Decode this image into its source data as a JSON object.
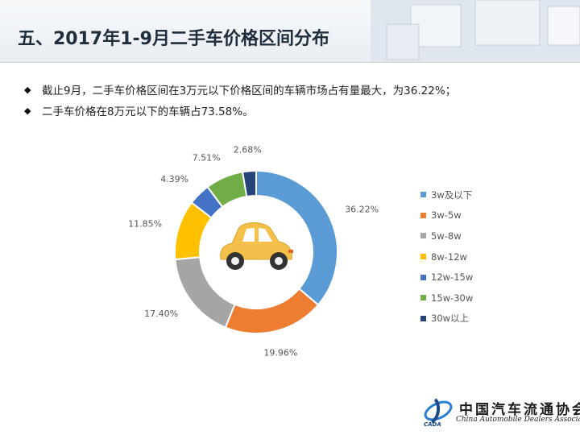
{
  "header": {
    "title": "五、2017年1-9月二手车价格区间分布"
  },
  "bullets": [
    "截止9月，二手车价格区间在3万元以下价格区间的车辆市场占有量最大，为36.22%；",
    "二手车价格在8万元以下的车辆占73.58%。"
  ],
  "logo": {
    "cn": "中国汽车流通协会",
    "en": "China Automobile Dealers Association",
    "abbr": "CADA"
  },
  "colors": {
    "blue": "#5b9bd5",
    "orange": "#ed7d31",
    "gray": "#a5a5a5",
    "yellow": "#ffc000",
    "darkblue": "#4472c4",
    "green": "#70ad47",
    "navy": "#264478",
    "car": "#f5c04a"
  },
  "chart_data": {
    "type": "pie",
    "donut": true,
    "title": "",
    "categories": [
      "3w及以下",
      "3w-5w",
      "5w-8w",
      "8w-12w",
      "12w-15w",
      "15w-30w",
      "30w以上"
    ],
    "values": [
      36.22,
      19.96,
      17.4,
      11.85,
      4.39,
      7.51,
      2.68
    ],
    "labels": [
      "36.22%",
      "19.96%",
      "17.40%",
      "11.85%",
      "4.39%",
      "7.51%",
      "2.68%"
    ],
    "colors": [
      "#5b9bd5",
      "#ed7d31",
      "#a5a5a5",
      "#ffc000",
      "#4472c4",
      "#70ad47",
      "#264478"
    ],
    "legend": "right",
    "center_icon": "car-icon"
  }
}
